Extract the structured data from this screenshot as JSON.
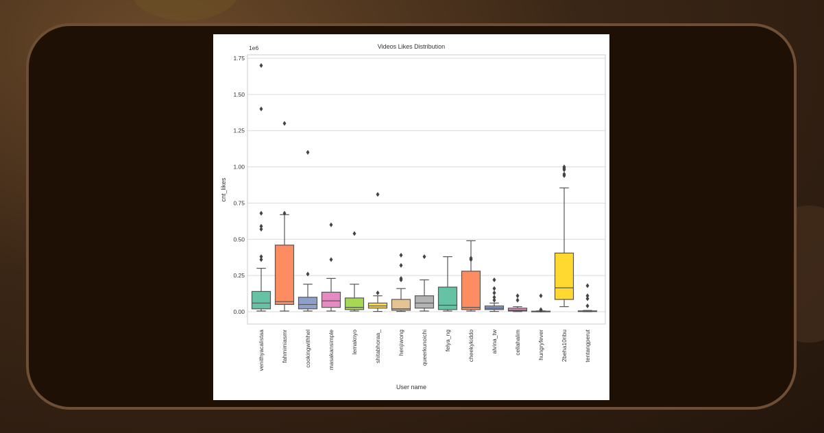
{
  "chart_data": {
    "type": "box",
    "title": "Videos Likes Distribution",
    "xlabel": "User name",
    "ylabel": "cnt_likes",
    "y_offset_label": "1e6",
    "ylim": [
      0,
      1.75
    ],
    "yticks": [
      0.0,
      0.25,
      0.5,
      0.75,
      1.0,
      1.25,
      1.5,
      1.75
    ],
    "ytick_labels": [
      "0.00",
      "0.25",
      "0.50",
      "0.75",
      "1.00",
      "1.25",
      "1.50",
      "1.75"
    ],
    "grid": true,
    "legend": "none",
    "categories": [
      "venithyacalistaa",
      "fahmimiasmr",
      "cookingwithhel",
      "masakansimple",
      "lemaknyo",
      "shitabhoraa_",
      "henjiwong",
      "queerkunoichi",
      "felya_ng",
      "cheekykiddo",
      "alvina_tw",
      "cellahalim",
      "hungryfever",
      "2beha10ribu",
      "tentangperut"
    ],
    "colors": [
      "#66c2a5",
      "#fc8d62",
      "#8da0cb",
      "#e78ac3",
      "#a6d854",
      "#ffd92f",
      "#e5c494",
      "#b3b3b3",
      "#66c2a5",
      "#fc8d62",
      "#8da0cb",
      "#e78ac3",
      "#a6d854",
      "#ffd92f",
      "#e5c494"
    ],
    "boxes": [
      {
        "whislo": 0.005,
        "q1": 0.02,
        "med": 0.06,
        "q3": 0.14,
        "whishi": 0.3,
        "fliers": [
          0.36,
          0.38,
          0.57,
          0.59,
          0.68,
          1.4,
          1.7
        ]
      },
      {
        "whislo": 0.005,
        "q1": 0.05,
        "med": 0.07,
        "q3": 0.46,
        "whishi": 0.67,
        "fliers": [
          0.68,
          1.3
        ]
      },
      {
        "whislo": 0.005,
        "q1": 0.02,
        "med": 0.05,
        "q3": 0.1,
        "whishi": 0.19,
        "fliers": [
          0.26,
          1.1
        ]
      },
      {
        "whislo": 0.005,
        "q1": 0.03,
        "med": 0.075,
        "q3": 0.135,
        "whishi": 0.23,
        "fliers": [
          0.36,
          0.6
        ]
      },
      {
        "whislo": 0.005,
        "q1": 0.015,
        "med": 0.03,
        "q3": 0.095,
        "whishi": 0.19,
        "fliers": [
          0.54
        ]
      },
      {
        "whislo": 0.002,
        "q1": 0.025,
        "med": 0.04,
        "q3": 0.06,
        "whishi": 0.11,
        "fliers": [
          0.13,
          0.81
        ]
      },
      {
        "whislo": 0.002,
        "q1": 0.01,
        "med": 0.02,
        "q3": 0.085,
        "whishi": 0.16,
        "fliers": [
          0.22,
          0.23,
          0.32,
          0.39
        ]
      },
      {
        "whislo": 0.005,
        "q1": 0.025,
        "med": 0.06,
        "q3": 0.11,
        "whishi": 0.22,
        "fliers": [
          0.38
        ]
      },
      {
        "whislo": 0.005,
        "q1": 0.015,
        "med": 0.045,
        "q3": 0.17,
        "whishi": 0.38,
        "fliers": []
      },
      {
        "whislo": 0.005,
        "q1": 0.015,
        "med": 0.03,
        "q3": 0.28,
        "whishi": 0.49,
        "fliers": [
          0.36,
          0.37
        ]
      },
      {
        "whislo": 0.002,
        "q1": 0.015,
        "med": 0.025,
        "q3": 0.04,
        "whishi": 0.06,
        "fliers": [
          0.08,
          0.1,
          0.13,
          0.16,
          0.22
        ]
      },
      {
        "whislo": 0.001,
        "q1": 0.005,
        "med": 0.01,
        "q3": 0.025,
        "whishi": 0.035,
        "fliers": [
          0.08,
          0.11
        ]
      },
      {
        "whislo": 0.0,
        "q1": 0.001,
        "med": 0.002,
        "q3": 0.004,
        "whishi": 0.006,
        "fliers": [
          0.01,
          0.015,
          0.11
        ]
      },
      {
        "whislo": 0.035,
        "q1": 0.085,
        "med": 0.165,
        "q3": 0.405,
        "whishi": 0.855,
        "fliers": [
          0.94,
          0.95,
          0.98,
          0.99,
          1.0
        ]
      },
      {
        "whislo": 0.0,
        "q1": 0.001,
        "med": 0.003,
        "q3": 0.006,
        "whishi": 0.009,
        "fliers": [
          0.04,
          0.09,
          0.11,
          0.18
        ]
      }
    ]
  }
}
